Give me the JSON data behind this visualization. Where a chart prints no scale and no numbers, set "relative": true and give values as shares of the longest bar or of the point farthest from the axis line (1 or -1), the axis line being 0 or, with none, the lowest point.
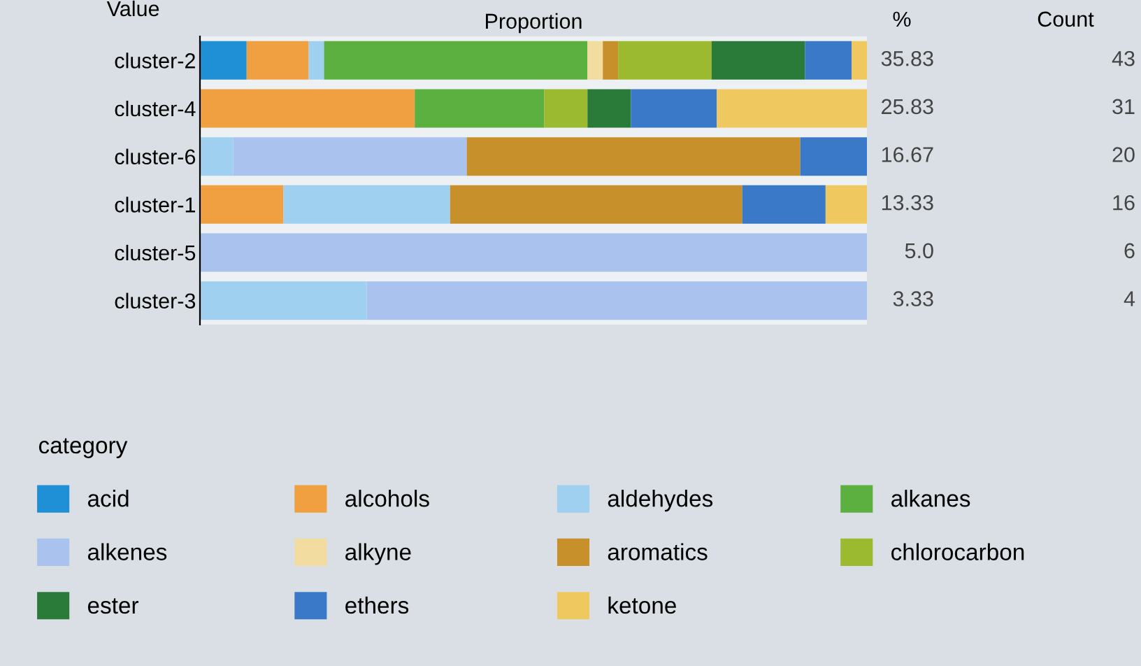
{
  "chart_data": {
    "type": "bar",
    "orientation": "horizontal",
    "stacked": true,
    "relative": true,
    "xlabel": "Proportion",
    "ylabel": "Value",
    "legend_title": "category",
    "legend": "bottom",
    "grid": false,
    "categories": [
      "cluster-2",
      "cluster-4",
      "cluster-6",
      "cluster-1",
      "cluster-5",
      "cluster-3"
    ],
    "series": [
      {
        "name": "acid",
        "color": "#1f8fd6",
        "values": [
          0.07,
          null,
          null,
          null,
          null,
          null
        ]
      },
      {
        "name": "alcohols",
        "color": "#f0a040",
        "values": [
          0.093,
          0.322,
          null,
          0.125,
          null,
          null
        ]
      },
      {
        "name": "aldehydes",
        "color": "#9fd0f0",
        "values": [
          0.023,
          null,
          0.05,
          0.25,
          null,
          0.25
        ]
      },
      {
        "name": "alkanes",
        "color": "#5cb040",
        "values": [
          0.395,
          0.194,
          null,
          null,
          null,
          null
        ]
      },
      {
        "name": "alkenes",
        "color": "#a9c3ee",
        "values": [
          null,
          null,
          0.35,
          null,
          1.0,
          0.75
        ]
      },
      {
        "name": "alkyne",
        "color": "#f2dca0",
        "values": [
          0.023,
          null,
          null,
          null,
          null,
          null
        ]
      },
      {
        "name": "aromatics",
        "color": "#c8902a",
        "values": [
          0.023,
          null,
          0.5,
          0.438,
          null,
          null
        ]
      },
      {
        "name": "chlorocarbon",
        "color": "#9cba30",
        "values": [
          0.14,
          0.065,
          null,
          null,
          null,
          null
        ]
      },
      {
        "name": "ester",
        "color": "#2a7a3a",
        "values": [
          0.14,
          0.065,
          null,
          null,
          null,
          null
        ]
      },
      {
        "name": "ethers",
        "color": "#3a78c8",
        "values": [
          0.07,
          0.129,
          0.1,
          0.125,
          null,
          null
        ]
      },
      {
        "name": "ketone",
        "color": "#f0c860",
        "values": [
          0.023,
          0.225,
          null,
          0.062,
          null,
          null
        ]
      }
    ],
    "annotations": [
      "%",
      "Count",
      "35.83",
      "43",
      "25.83",
      "31",
      "16.67",
      "20",
      "13.33",
      "16",
      "5.0",
      "6",
      "3.33",
      "4"
    ]
  }
}
